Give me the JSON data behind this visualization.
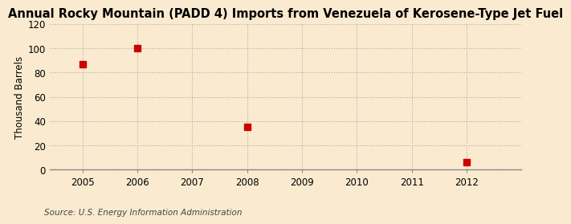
{
  "title": "Annual Rocky Mountain (PADD 4) Imports from Venezuela of Kerosene-Type Jet Fuel",
  "ylabel": "Thousand Barrels",
  "source": "Source: U.S. Energy Information Administration",
  "background_color": "#faebd0",
  "data_points": [
    {
      "year": 2005,
      "value": 87
    },
    {
      "year": 2006,
      "value": 100
    },
    {
      "year": 2008,
      "value": 35
    },
    {
      "year": 2012,
      "value": 6
    }
  ],
  "marker_color": "#cc0000",
  "marker_size": 28,
  "xlim": [
    2004.4,
    2013.0
  ],
  "ylim": [
    0,
    120
  ],
  "yticks": [
    0,
    20,
    40,
    60,
    80,
    100,
    120
  ],
  "xticks": [
    2005,
    2006,
    2007,
    2008,
    2009,
    2010,
    2011,
    2012
  ],
  "title_fontsize": 10.5,
  "ylabel_fontsize": 8.5,
  "tick_fontsize": 8.5,
  "source_fontsize": 7.5,
  "grid_color": "#aaaaaa",
  "grid_linestyle": ":"
}
